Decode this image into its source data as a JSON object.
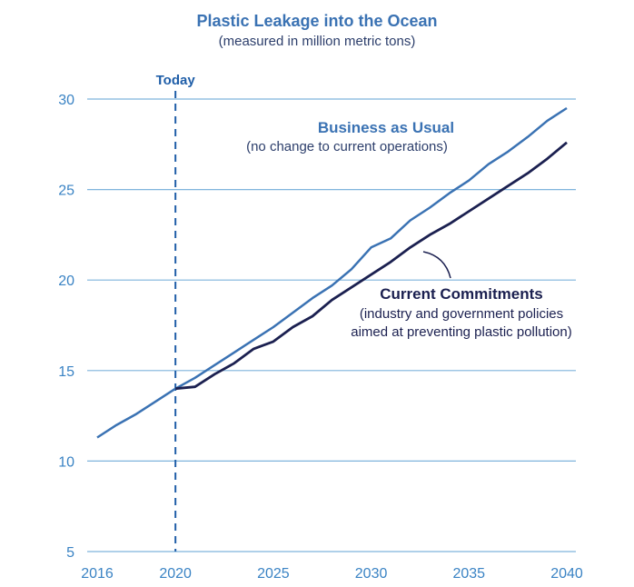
{
  "chart_data": {
    "type": "line",
    "title": "Plastic Leakage into the Ocean",
    "subtitle": "(measured in million metric tons)",
    "xlabel": "",
    "ylabel": "",
    "xlim": [
      2016,
      2040
    ],
    "ylim": [
      5,
      30
    ],
    "grid": true,
    "x_ticks": [
      2016,
      2020,
      2025,
      2030,
      2035,
      2040
    ],
    "y_ticks": [
      5,
      10,
      15,
      20,
      25,
      30
    ],
    "x_tick_labels": [
      "2016",
      "2020",
      "2025",
      "2030",
      "2035",
      "2040"
    ],
    "y_tick_labels": [
      "5",
      "10",
      "15",
      "20",
      "25",
      "30"
    ],
    "today_marker": {
      "x": 2020,
      "label": "Today"
    },
    "series": [
      {
        "name": "Business as Usual",
        "description": "(no change to current operations)",
        "color": "#3a72b3",
        "x": [
          2016,
          2017,
          2018,
          2019,
          2020,
          2021,
          2022,
          2023,
          2024,
          2025,
          2026,
          2027,
          2028,
          2029,
          2030,
          2031,
          2032,
          2033,
          2034,
          2035,
          2036,
          2037,
          2038,
          2039,
          2040
        ],
        "values": [
          11.3,
          12.0,
          12.6,
          13.3,
          14.0,
          14.6,
          15.3,
          16.0,
          16.7,
          17.4,
          18.2,
          19.0,
          19.7,
          20.6,
          21.8,
          22.3,
          23.3,
          24.0,
          24.8,
          25.5,
          26.4,
          27.1,
          27.9,
          28.8,
          29.5
        ]
      },
      {
        "name": "Current Commitments",
        "description_line1": "(industry and government policies",
        "description_line2": "aimed at preventing plastic pollution)",
        "color": "#1b2050",
        "x": [
          2020,
          2021,
          2022,
          2023,
          2024,
          2025,
          2026,
          2027,
          2028,
          2029,
          2030,
          2031,
          2032,
          2033,
          2034,
          2035,
          2036,
          2037,
          2038,
          2039,
          2040
        ],
        "values": [
          14.0,
          14.1,
          14.8,
          15.4,
          16.2,
          16.6,
          17.4,
          18.0,
          18.9,
          19.6,
          20.3,
          21.0,
          21.8,
          22.5,
          23.1,
          23.8,
          24.5,
          25.2,
          25.9,
          26.7,
          27.6
        ]
      }
    ]
  },
  "colors": {
    "title": "#3a72b3",
    "subtitle": "#2c3e6b",
    "grid": "#7fb4dc",
    "tick": "#3a83c4",
    "today_line": "#1f5ea8"
  }
}
